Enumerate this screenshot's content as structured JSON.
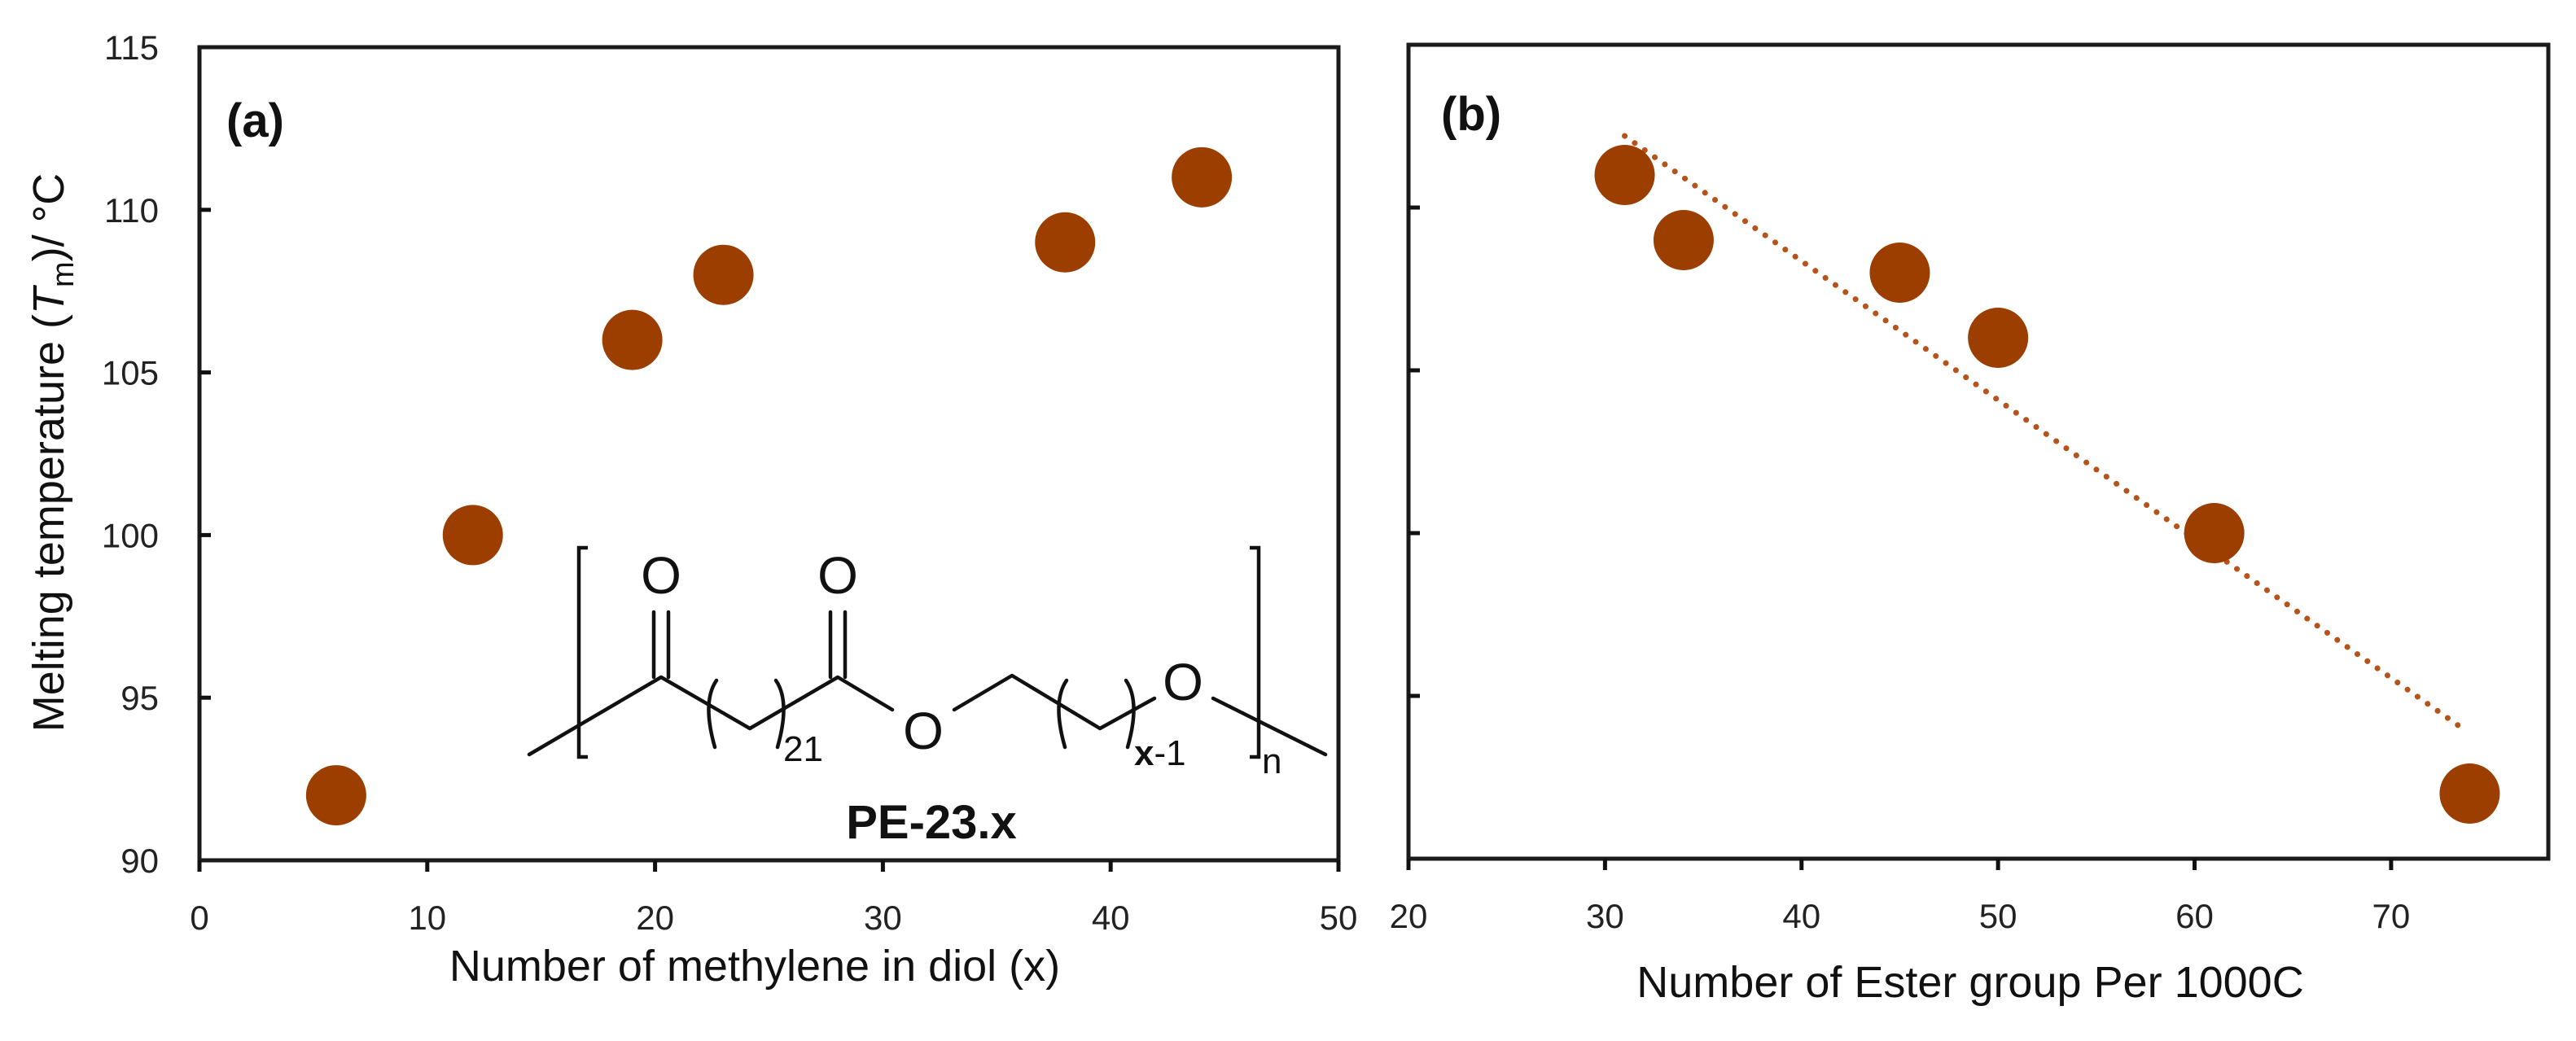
{
  "figure": {
    "y_axis_title": {
      "prefix": "Melting temperature (",
      "symbol": "T",
      "subscript": "m",
      "suffix": ")/ °C"
    },
    "marker_color": "#9C3E00",
    "trendline_color": "#B5531A",
    "axis_color": "#111111"
  },
  "panels": [
    {
      "id": "a",
      "label": "(a)",
      "x_axis_title": "Number of methylene in diol (x)",
      "x_ticks": [
        "0",
        "10",
        "20",
        "30",
        "40",
        "50"
      ],
      "y_ticks": [
        "90",
        "95",
        "100",
        "105",
        "110",
        "115"
      ]
    },
    {
      "id": "b",
      "label": "(b)",
      "x_axis_title": "Number of Ester group Per 1000C",
      "x_ticks": [
        "20",
        "30",
        "40",
        "50",
        "60",
        "70"
      ],
      "y_ticks": []
    }
  ],
  "structure": {
    "name": "PE-23.x",
    "atoms": {
      "carbonyl_o1": "O",
      "carbonyl_o2": "O",
      "ester_o": "O",
      "ether_o": "O"
    },
    "repeat_subscript_1": "21",
    "repeat_subscript_2_var": "x",
    "repeat_subscript_2_rest": "-1",
    "polymer_subscript": "n"
  },
  "chart_data": [
    {
      "type": "scatter",
      "panel": "(a)",
      "title": "",
      "xlabel": "Number of methylene in diol (x)",
      "ylabel": "Melting temperature (Tm)/ °C",
      "xlim": [
        0,
        50
      ],
      "ylim": [
        90,
        115
      ],
      "x_ticks": [
        0,
        10,
        20,
        30,
        40,
        50
      ],
      "y_ticks": [
        90,
        95,
        100,
        105,
        110,
        115
      ],
      "grid": false,
      "legend": null,
      "series": [
        {
          "name": "PE-23.x",
          "x": [
            6,
            12,
            19,
            23,
            38,
            44
          ],
          "y": [
            92,
            100,
            106,
            108,
            109,
            111
          ],
          "marker": "circle",
          "color": "#9C3E00"
        }
      ],
      "annotations": [
        "(a)",
        "PE-23.x chemical structure inset"
      ]
    },
    {
      "type": "scatter",
      "panel": "(b)",
      "title": "",
      "xlabel": "Number of Ester group Per 1000C",
      "ylabel": "Melting temperature (Tm)/ °C",
      "xlim": [
        20,
        78
      ],
      "ylim": [
        90,
        115
      ],
      "x_ticks": [
        20,
        30,
        40,
        50,
        60,
        70
      ],
      "y_ticks": [
        90,
        95,
        100,
        105,
        110,
        115
      ],
      "grid": false,
      "legend": null,
      "series": [
        {
          "name": "PE-23.x",
          "x": [
            31,
            34,
            45,
            50,
            61,
            74
          ],
          "y": [
            111,
            109,
            108,
            106,
            100,
            92
          ],
          "marker": "circle",
          "color": "#9C3E00"
        },
        {
          "name": "Linear trendline",
          "type": "line",
          "style": "dotted",
          "x": [
            31,
            73.4
          ],
          "y": [
            112.2,
            94.1
          ],
          "color": "#B5531A"
        }
      ],
      "annotations": [
        "(b)"
      ]
    }
  ]
}
